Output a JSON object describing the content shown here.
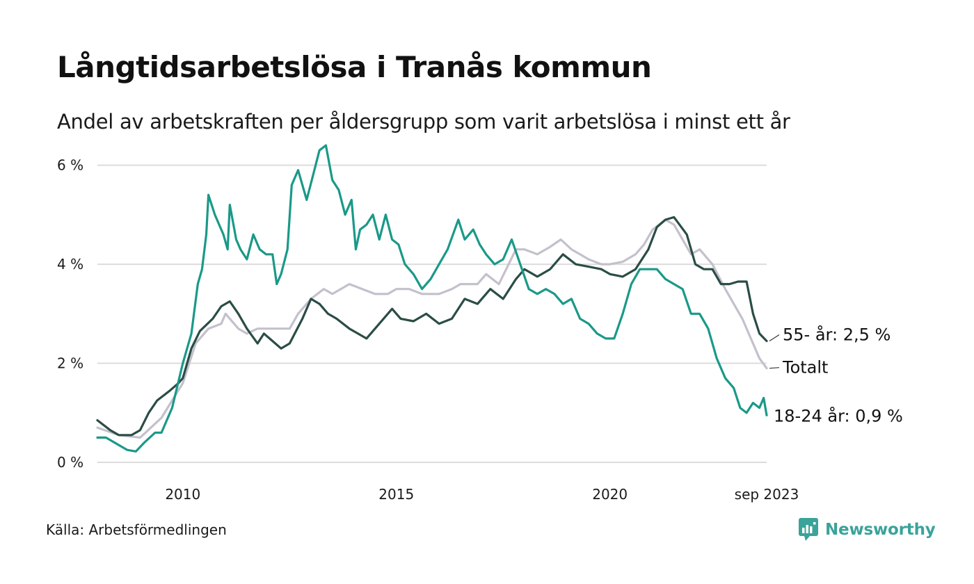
{
  "title": "Långtidsarbetslösa i Tranås kommun",
  "subtitle": "Andel av arbetskraften per åldersgrupp som varit arbetslösa i minst ett år",
  "source": "Källa: Arbetsförmedlingen",
  "brand": "Newsworthy",
  "chart_data": {
    "type": "line",
    "x_unit": "year",
    "xlim": [
      2008.0,
      2023.67
    ],
    "ylim": [
      0,
      6.5
    ],
    "y_ticks": [
      0,
      2,
      4,
      6
    ],
    "y_tick_labels": [
      "0 %",
      "2 %",
      "4 %",
      "6 %"
    ],
    "x_ticks": [
      2010,
      2015,
      2020,
      2023.67
    ],
    "x_tick_labels": [
      "2010",
      "2015",
      "2020",
      "sep 2023"
    ],
    "grid": "horizontal",
    "series": [
      {
        "name": "Totalt",
        "label": "Totalt",
        "color": "#c4c0cc",
        "points": [
          [
            2008.0,
            0.7
          ],
          [
            2008.5,
            0.55
          ],
          [
            2009.0,
            0.5
          ],
          [
            2009.5,
            0.9
          ],
          [
            2010.0,
            1.6
          ],
          [
            2010.3,
            2.4
          ],
          [
            2010.6,
            2.7
          ],
          [
            2010.9,
            2.8
          ],
          [
            2011.0,
            3.0
          ],
          [
            2011.3,
            2.7
          ],
          [
            2011.5,
            2.6
          ],
          [
            2011.75,
            2.7
          ],
          [
            2012.0,
            2.7
          ],
          [
            2012.5,
            2.7
          ],
          [
            2012.7,
            3.0
          ],
          [
            2013.0,
            3.3
          ],
          [
            2013.3,
            3.5
          ],
          [
            2013.5,
            3.4
          ],
          [
            2013.9,
            3.6
          ],
          [
            2014.2,
            3.5
          ],
          [
            2014.5,
            3.4
          ],
          [
            2014.8,
            3.4
          ],
          [
            2015.0,
            3.5
          ],
          [
            2015.3,
            3.5
          ],
          [
            2015.6,
            3.4
          ],
          [
            2016.0,
            3.4
          ],
          [
            2016.3,
            3.5
          ],
          [
            2016.5,
            3.6
          ],
          [
            2016.9,
            3.6
          ],
          [
            2017.1,
            3.8
          ],
          [
            2017.4,
            3.6
          ],
          [
            2017.8,
            4.3
          ],
          [
            2018.0,
            4.3
          ],
          [
            2018.3,
            4.2
          ],
          [
            2018.6,
            4.35
          ],
          [
            2018.85,
            4.5
          ],
          [
            2019.1,
            4.3
          ],
          [
            2019.3,
            4.2
          ],
          [
            2019.5,
            4.1
          ],
          [
            2019.8,
            4.0
          ],
          [
            2020.0,
            4.0
          ],
          [
            2020.3,
            4.05
          ],
          [
            2020.6,
            4.2
          ],
          [
            2020.8,
            4.4
          ],
          [
            2021.0,
            4.7
          ],
          [
            2021.3,
            4.9
          ],
          [
            2021.5,
            4.8
          ],
          [
            2021.7,
            4.5
          ],
          [
            2021.9,
            4.2
          ],
          [
            2022.1,
            4.3
          ],
          [
            2022.4,
            4.0
          ],
          [
            2022.7,
            3.5
          ],
          [
            2022.9,
            3.2
          ],
          [
            2023.1,
            2.9
          ],
          [
            2023.3,
            2.5
          ],
          [
            2023.5,
            2.1
          ],
          [
            2023.67,
            1.9
          ]
        ]
      },
      {
        "name": "55- år",
        "label": "55- år: 2,5 %",
        "color": "#2a4d45",
        "points": [
          [
            2008.0,
            0.85
          ],
          [
            2008.3,
            0.65
          ],
          [
            2008.5,
            0.55
          ],
          [
            2008.8,
            0.55
          ],
          [
            2009.0,
            0.65
          ],
          [
            2009.2,
            1.0
          ],
          [
            2009.4,
            1.25
          ],
          [
            2009.7,
            1.45
          ],
          [
            2009.9,
            1.6
          ],
          [
            2010.0,
            1.7
          ],
          [
            2010.2,
            2.3
          ],
          [
            2010.4,
            2.65
          ],
          [
            2010.7,
            2.9
          ],
          [
            2010.9,
            3.15
          ],
          [
            2011.1,
            3.25
          ],
          [
            2011.3,
            3.0
          ],
          [
            2011.5,
            2.7
          ],
          [
            2011.75,
            2.4
          ],
          [
            2011.9,
            2.6
          ],
          [
            2012.1,
            2.45
          ],
          [
            2012.3,
            2.3
          ],
          [
            2012.5,
            2.4
          ],
          [
            2012.8,
            2.9
          ],
          [
            2013.0,
            3.3
          ],
          [
            2013.2,
            3.2
          ],
          [
            2013.4,
            3.0
          ],
          [
            2013.6,
            2.9
          ],
          [
            2013.9,
            2.7
          ],
          [
            2014.1,
            2.6
          ],
          [
            2014.3,
            2.5
          ],
          [
            2014.6,
            2.8
          ],
          [
            2014.9,
            3.1
          ],
          [
            2015.1,
            2.9
          ],
          [
            2015.4,
            2.85
          ],
          [
            2015.7,
            3.0
          ],
          [
            2016.0,
            2.8
          ],
          [
            2016.3,
            2.9
          ],
          [
            2016.6,
            3.3
          ],
          [
            2016.9,
            3.2
          ],
          [
            2017.2,
            3.5
          ],
          [
            2017.5,
            3.3
          ],
          [
            2017.8,
            3.7
          ],
          [
            2018.0,
            3.9
          ],
          [
            2018.3,
            3.75
          ],
          [
            2018.6,
            3.9
          ],
          [
            2018.9,
            4.2
          ],
          [
            2019.2,
            4.0
          ],
          [
            2019.5,
            3.95
          ],
          [
            2019.8,
            3.9
          ],
          [
            2020.0,
            3.8
          ],
          [
            2020.3,
            3.75
          ],
          [
            2020.6,
            3.9
          ],
          [
            2020.9,
            4.3
          ],
          [
            2021.1,
            4.75
          ],
          [
            2021.3,
            4.9
          ],
          [
            2021.5,
            4.95
          ],
          [
            2021.8,
            4.6
          ],
          [
            2022.0,
            4.0
          ],
          [
            2022.2,
            3.9
          ],
          [
            2022.4,
            3.9
          ],
          [
            2022.6,
            3.6
          ],
          [
            2022.8,
            3.6
          ],
          [
            2023.0,
            3.65
          ],
          [
            2023.2,
            3.65
          ],
          [
            2023.35,
            3.0
          ],
          [
            2023.5,
            2.6
          ],
          [
            2023.67,
            2.45
          ]
        ]
      },
      {
        "name": "18-24 år",
        "label": "18-24 år: 0,9 %",
        "color": "#1a9988",
        "points": [
          [
            2008.0,
            0.5
          ],
          [
            2008.2,
            0.5
          ],
          [
            2008.5,
            0.35
          ],
          [
            2008.7,
            0.25
          ],
          [
            2008.9,
            0.22
          ],
          [
            2009.1,
            0.4
          ],
          [
            2009.35,
            0.6
          ],
          [
            2009.5,
            0.6
          ],
          [
            2009.75,
            1.1
          ],
          [
            2010.0,
            2.0
          ],
          [
            2010.2,
            2.6
          ],
          [
            2010.35,
            3.6
          ],
          [
            2010.45,
            3.9
          ],
          [
            2010.55,
            4.6
          ],
          [
            2010.6,
            5.4
          ],
          [
            2010.75,
            5.0
          ],
          [
            2010.95,
            4.6
          ],
          [
            2011.05,
            4.3
          ],
          [
            2011.1,
            5.2
          ],
          [
            2011.25,
            4.5
          ],
          [
            2011.35,
            4.3
          ],
          [
            2011.5,
            4.1
          ],
          [
            2011.65,
            4.6
          ],
          [
            2011.8,
            4.3
          ],
          [
            2011.95,
            4.2
          ],
          [
            2012.1,
            4.2
          ],
          [
            2012.2,
            3.6
          ],
          [
            2012.3,
            3.8
          ],
          [
            2012.45,
            4.3
          ],
          [
            2012.55,
            5.6
          ],
          [
            2012.7,
            5.9
          ],
          [
            2012.9,
            5.3
          ],
          [
            2013.05,
            5.8
          ],
          [
            2013.2,
            6.3
          ],
          [
            2013.35,
            6.4
          ],
          [
            2013.5,
            5.7
          ],
          [
            2013.65,
            5.5
          ],
          [
            2013.8,
            5.0
          ],
          [
            2013.95,
            5.3
          ],
          [
            2014.05,
            4.3
          ],
          [
            2014.15,
            4.7
          ],
          [
            2014.3,
            4.8
          ],
          [
            2014.45,
            5.0
          ],
          [
            2014.6,
            4.5
          ],
          [
            2014.75,
            5.0
          ],
          [
            2014.9,
            4.5
          ],
          [
            2015.05,
            4.4
          ],
          [
            2015.2,
            4.0
          ],
          [
            2015.4,
            3.8
          ],
          [
            2015.6,
            3.5
          ],
          [
            2015.8,
            3.7
          ],
          [
            2016.0,
            4.0
          ],
          [
            2016.2,
            4.3
          ],
          [
            2016.45,
            4.9
          ],
          [
            2016.6,
            4.5
          ],
          [
            2016.8,
            4.7
          ],
          [
            2016.95,
            4.4
          ],
          [
            2017.1,
            4.2
          ],
          [
            2017.3,
            4.0
          ],
          [
            2017.5,
            4.1
          ],
          [
            2017.7,
            4.5
          ],
          [
            2017.9,
            4.0
          ],
          [
            2018.1,
            3.5
          ],
          [
            2018.3,
            3.4
          ],
          [
            2018.5,
            3.5
          ],
          [
            2018.7,
            3.4
          ],
          [
            2018.9,
            3.2
          ],
          [
            2019.1,
            3.3
          ],
          [
            2019.3,
            2.9
          ],
          [
            2019.5,
            2.8
          ],
          [
            2019.7,
            2.6
          ],
          [
            2019.9,
            2.5
          ],
          [
            2020.1,
            2.5
          ],
          [
            2020.3,
            3.0
          ],
          [
            2020.5,
            3.6
          ],
          [
            2020.7,
            3.9
          ],
          [
            2020.9,
            3.9
          ],
          [
            2021.1,
            3.9
          ],
          [
            2021.3,
            3.7
          ],
          [
            2021.5,
            3.6
          ],
          [
            2021.7,
            3.5
          ],
          [
            2021.9,
            3.0
          ],
          [
            2022.1,
            3.0
          ],
          [
            2022.3,
            2.7
          ],
          [
            2022.5,
            2.1
          ],
          [
            2022.7,
            1.7
          ],
          [
            2022.9,
            1.5
          ],
          [
            2023.05,
            1.1
          ],
          [
            2023.2,
            1.0
          ],
          [
            2023.35,
            1.2
          ],
          [
            2023.5,
            1.1
          ],
          [
            2023.6,
            1.3
          ],
          [
            2023.67,
            0.95
          ]
        ]
      }
    ]
  }
}
